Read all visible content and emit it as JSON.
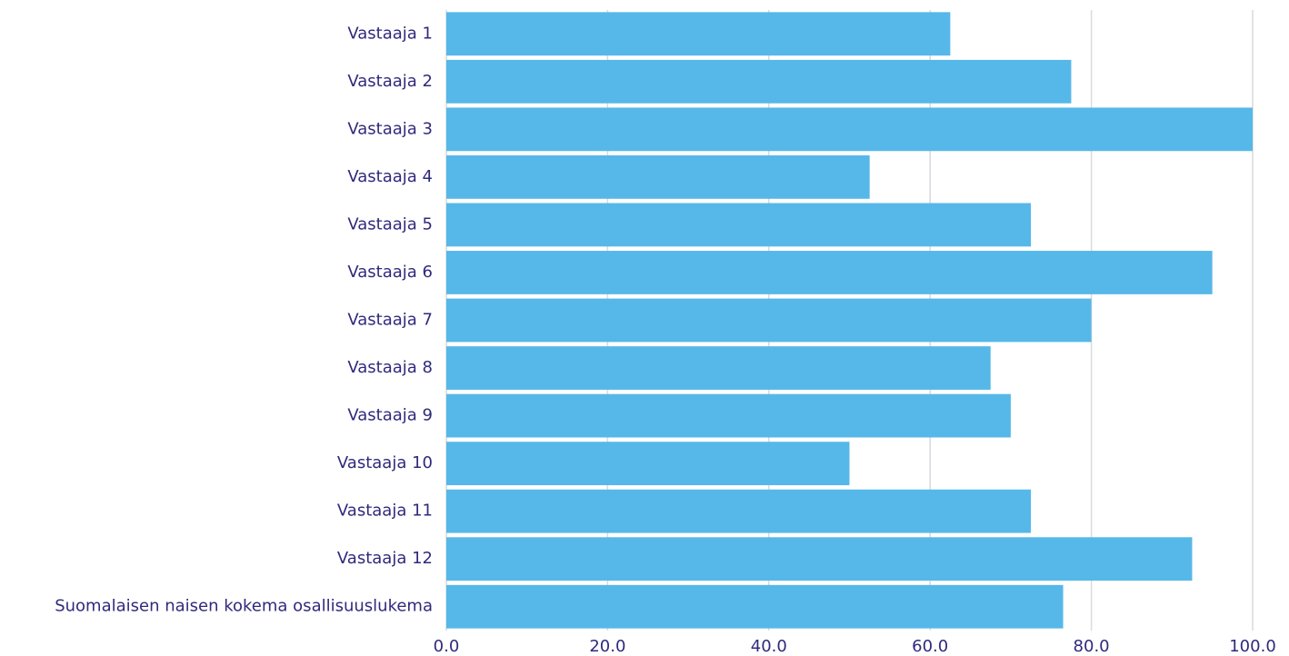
{
  "chart_data": {
    "type": "bar",
    "orientation": "horizontal",
    "categories": [
      "Vastaaja 1",
      "Vastaaja 2",
      "Vastaaja 3",
      "Vastaaja 4",
      "Vastaaja 5",
      "Vastaaja 6",
      "Vastaaja 7",
      "Vastaaja 8",
      "Vastaaja 9",
      "Vastaaja 10",
      "Vastaaja 11",
      "Vastaaja 12",
      "Suomalaisen naisen kokema osallisuuslukema"
    ],
    "values": [
      62.5,
      77.5,
      100,
      52.5,
      72.5,
      95,
      80,
      67.5,
      70,
      50,
      72.5,
      92.5,
      76.5
    ],
    "color": "#56b8e8",
    "xlim": [
      0,
      100
    ],
    "xticks": [
      {
        "value": 0,
        "label": "0.0"
      },
      {
        "value": 20,
        "label": "20.0"
      },
      {
        "value": 40,
        "label": "40.0"
      },
      {
        "value": 60,
        "label": "60.0"
      },
      {
        "value": 80,
        "label": "80.0"
      },
      {
        "value": 100,
        "label": "100.0"
      }
    ],
    "grid": true
  }
}
